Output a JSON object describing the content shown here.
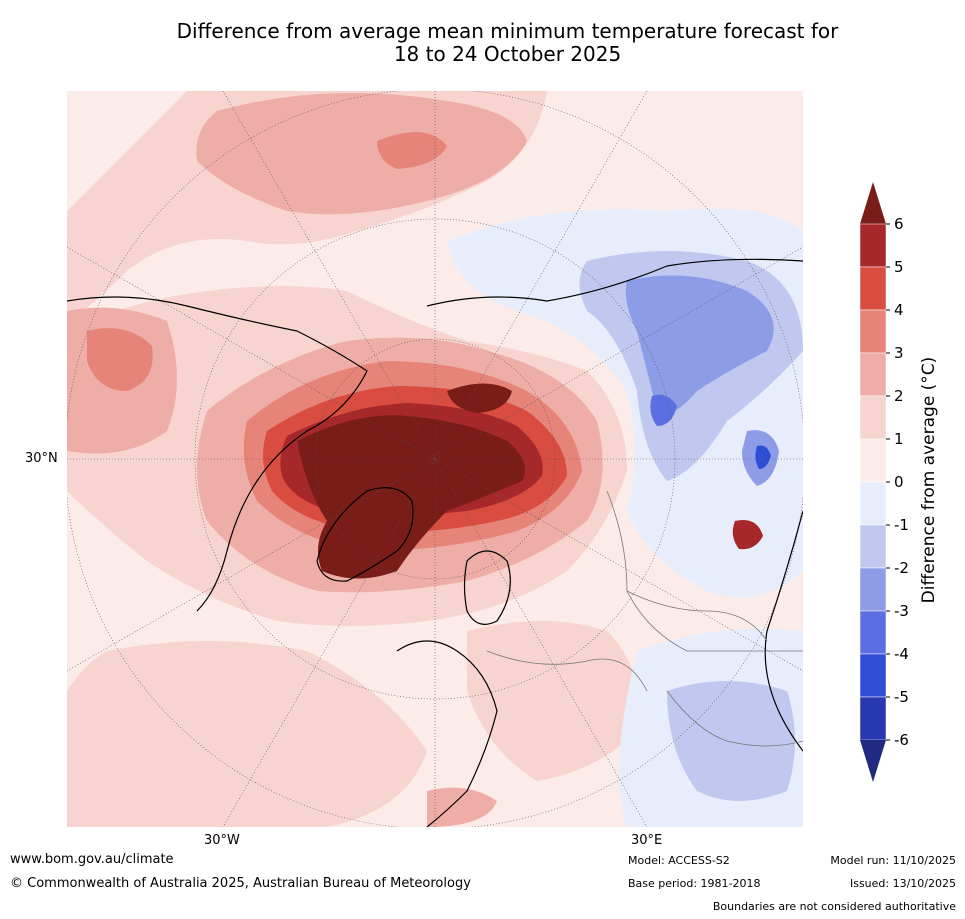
{
  "title": {
    "line1": "Difference from average mean minimum temperature forecast for",
    "line2": "18 to 24 October 2025"
  },
  "map": {
    "lat_label": "30°N",
    "lon_labels": [
      "30°W",
      "30°E"
    ],
    "base_color": "#fbece9"
  },
  "colorbar": {
    "label": "Difference from average (°C)",
    "ticks": [
      "6",
      "5",
      "4",
      "3",
      "2",
      "1",
      "0",
      "-1",
      "-2",
      "-3",
      "-4",
      "-5",
      "-6"
    ],
    "colors": [
      "#7a1c17",
      "#a7282a",
      "#d94d40",
      "#e6847a",
      "#efada7",
      "#f7d4cf",
      "#fbece9",
      "#e8edfb",
      "#c0c8f0",
      "#8d9ce7",
      "#5c6fe2",
      "#2f4ed8",
      "#2738b0",
      "#1f2a80"
    ]
  },
  "footer": {
    "website": "www.bom.gov.au/climate",
    "copyright": "© Commonwealth of Australia 2025, Australian Bureau of Meteorology",
    "model": "Model: ACCESS-S2",
    "base_period": "Base period: 1981-2018",
    "model_run": "Model run: 11/10/2025",
    "issued": "Issued: 13/10/2025",
    "disclaimer": "Boundaries are not considered authoritative"
  }
}
